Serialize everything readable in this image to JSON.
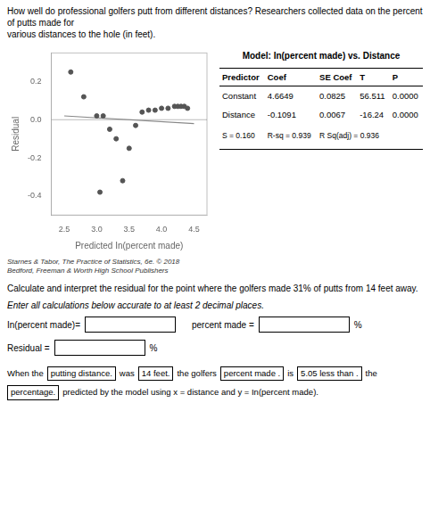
{
  "chart_data": {
    "type": "scatter",
    "title": "How well do professional golfers putt from different distances? Researchers collected data on the percent of putts made for\nvarious distances to the hole (in feet).",
    "x_label": "Predicted In(percent made)",
    "y_label": "Residual",
    "series": [
      {
        "type": "scatter",
        "color": "#555555",
        "marker": "circle",
        "x": [
          2.6,
          2.8,
          3.0,
          3.05,
          3.1,
          3.2,
          3.3,
          3.4,
          3.5,
          3.6,
          3.7,
          3.8,
          3.9,
          4.0,
          4.1,
          4.2,
          4.25,
          4.3,
          4.35,
          4.4
        ],
        "values": [
          0.25,
          0.12,
          0.02,
          -0.38,
          0.02,
          -0.05,
          -0.1,
          -0.32,
          -0.15,
          -0.03,
          0.04,
          0.05,
          0.05,
          0.06,
          0.06,
          0.07,
          0.07,
          0.07,
          0.07,
          0.06
        ]
      },
      {
        "type": "line",
        "color": "#888888",
        "line_style": "solid",
        "x": [
          2.5,
          4.5
        ],
        "values": [
          0.02,
          -0.02
        ]
      },
      {
        "type": "line",
        "color": "#bbbbbb",
        "line_style": "solid",
        "x": [
          2.3,
          4.7
        ],
        "values": [
          0,
          0
        ]
      }
    ],
    "xlim": [
      2.3,
      4.7
    ],
    "ylim": [
      -0.5,
      0.35
    ],
    "xticks": [
      2.5,
      {
        "value": 3,
        "label": "3.0"
      },
      3.5,
      {
        "value": 4,
        "label": "4.0"
      },
      4.5
    ],
    "yticks": [
      0.2,
      {
        "value": 0,
        "label": "0.0"
      },
      -0.2,
      -0.4
    ],
    "grid": false,
    "citation": "Starnes & Tabor, The Practice of Statistics, 6e. © 2018\nBedford, Freeman & Worth High School Publishers",
    "table": {
      "title": "Model: In(percent made) vs. Distance",
      "headers": [
        "Predictor",
        "Coef",
        "SE Coef",
        "T",
        "P"
      ],
      "rows": [
        [
          "Constant",
          "4.6649",
          "0.0825",
          "56.511",
          "0.0000"
        ],
        [
          "Distance",
          "-0.1091",
          "0.0067",
          "-16.24",
          "0.0000"
        ],
        [
          "S = 0.160",
          "R-sq = 0.939",
          "R Sq(adj) = 0.936"
        ]
      ]
    },
    "questions": [
      "Calculate and interpret the residual for the point where the golfers made 31% of putts from 14 feet away.",
      "Enter all calculations below accurate to at least 2 decimal places."
    ],
    "fields": [
      {
        "label": "In(percent made)="
      },
      {
        "label": "percent made =",
        "unit": "%"
      },
      {
        "label": "Residual =",
        "unit": "%"
      }
    ],
    "sentence": [
      "When the",
      "putting distance.",
      "was",
      "14 feet.",
      "the golfers",
      "percent made .",
      "is",
      "5.05 less than .",
      "the",
      "percentage.",
      "predicted by the model using x = distance and y = In(percent made)."
    ]
  }
}
